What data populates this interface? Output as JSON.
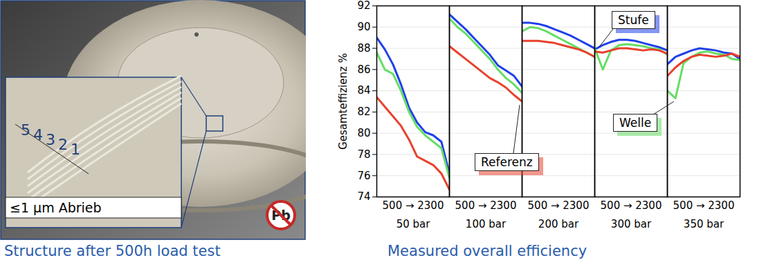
{
  "photo": {
    "caption": "Structure after 500h load test",
    "inset_labels": [
      "5",
      "4",
      "3",
      "2",
      "1"
    ],
    "inset_note": "≤1 µm Abrieb",
    "badge": "Pb"
  },
  "chart_data": {
    "type": "line",
    "title": "Measured overall efficiency",
    "y_label": "Gesamteffizienz %",
    "groups": [
      "50 bar",
      "100 bar",
      "200 bar",
      "300 bar",
      "350 bar"
    ],
    "group_range_label": "500 → 2300",
    "x": [
      500,
      700,
      900,
      1100,
      1300,
      1500,
      1700,
      1900,
      2100,
      2300
    ],
    "xlim": [
      500,
      2300
    ],
    "ylim": [
      74,
      92
    ],
    "yticks": [
      74,
      76,
      78,
      80,
      82,
      84,
      86,
      88,
      90,
      92
    ],
    "grid": true,
    "series": [
      {
        "name": "Stufe",
        "color": "#2040e8",
        "values": [
          [
            89.0,
            87.9,
            86.5,
            84.6,
            82.4,
            81.0,
            80.1,
            79.8,
            79.2,
            76.2
          ],
          [
            91.2,
            90.5,
            89.8,
            89.0,
            88.2,
            87.4,
            86.4,
            85.9,
            85.4,
            84.4
          ],
          [
            90.4,
            90.4,
            90.3,
            90.1,
            89.8,
            89.5,
            89.2,
            88.8,
            88.4,
            88.0
          ],
          [
            87.9,
            88.3,
            88.6,
            88.8,
            88.8,
            88.7,
            88.5,
            88.3,
            88.1,
            87.8
          ],
          [
            86.5,
            87.2,
            87.5,
            87.8,
            88.0,
            87.9,
            87.8,
            87.6,
            87.5,
            87.0
          ]
        ]
      },
      {
        "name": "Welle",
        "color": "#66dd66",
        "values": [
          [
            87.6,
            86.0,
            85.6,
            84.0,
            82.0,
            80.6,
            79.8,
            79.2,
            78.6,
            75.8
          ],
          [
            90.8,
            90.0,
            89.4,
            88.6,
            87.8,
            87.0,
            86.0,
            85.2,
            84.6,
            83.8
          ],
          [
            89.6,
            90.0,
            89.9,
            89.6,
            89.2,
            88.8,
            88.4,
            88.0,
            87.6,
            87.2
          ],
          [
            88.0,
            86.0,
            87.8,
            88.3,
            88.4,
            88.3,
            88.2,
            88.0,
            87.9,
            87.4
          ],
          [
            84.0,
            83.3,
            86.6,
            87.2,
            87.6,
            87.7,
            87.5,
            87.4,
            87.0,
            86.9
          ]
        ]
      },
      {
        "name": "Referenz",
        "color": "#e8412c",
        "values": [
          [
            83.4,
            82.5,
            81.6,
            80.7,
            79.4,
            77.8,
            77.4,
            77.0,
            76.2,
            74.7
          ],
          [
            88.2,
            87.6,
            87.0,
            86.4,
            85.8,
            85.2,
            84.8,
            84.3,
            83.6,
            83.0
          ],
          [
            88.7,
            88.7,
            88.7,
            88.6,
            88.5,
            88.3,
            88.1,
            87.9,
            87.6,
            87.2
          ],
          [
            87.7,
            87.6,
            87.8,
            88.0,
            88.0,
            87.9,
            87.8,
            87.9,
            87.8,
            87.5
          ],
          [
            85.4,
            86.2,
            86.8,
            87.2,
            87.4,
            87.3,
            87.2,
            87.3,
            87.5,
            87.2
          ]
        ]
      }
    ]
  }
}
